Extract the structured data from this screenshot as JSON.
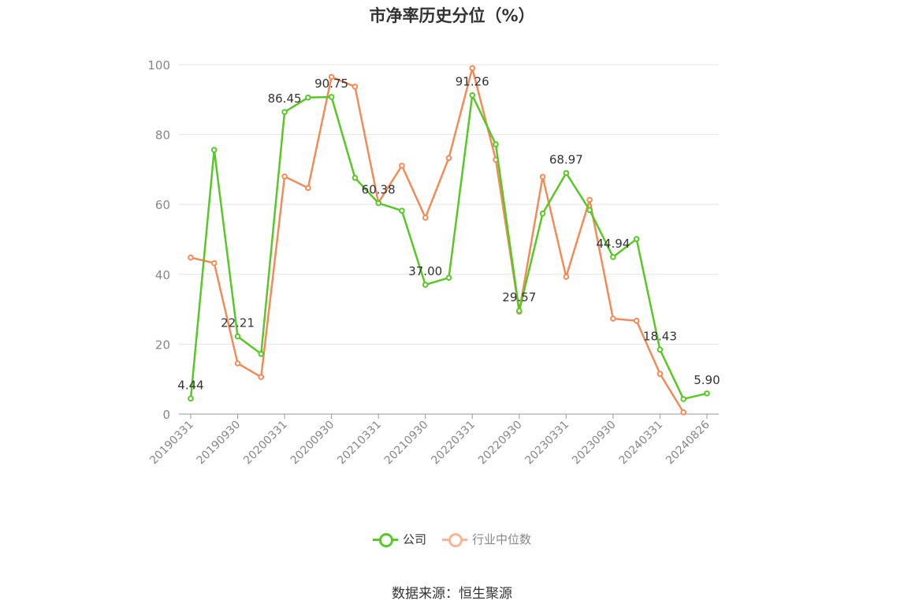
{
  "title": "市净率历史分位（%）",
  "source": "数据来源：恒生聚源",
  "colors": {
    "company": "#5ac726",
    "industry": "#f08c5a",
    "industry_legend": "#f9b596",
    "grid": "#e6e6e6",
    "axis": "#999999"
  },
  "chart_data": {
    "type": "line",
    "title": "市净率历史分位（%）",
    "ylim": [
      0,
      100
    ],
    "yticks": [
      0,
      20,
      40,
      60,
      80,
      100
    ],
    "x_tick_labels": [
      "20190331",
      "20190930",
      "20200331",
      "20200930",
      "20210331",
      "20210930",
      "20220331",
      "20220930",
      "20230331",
      "20230930",
      "20240331",
      "20240826"
    ],
    "x_tick_indices": [
      0,
      2,
      4,
      6,
      8,
      10,
      12,
      14,
      16,
      18,
      20,
      22
    ],
    "legend_position": "bottom",
    "grid": true,
    "series": [
      {
        "name": "公司",
        "values": [
          4.44,
          75.6,
          22.21,
          17.2,
          86.45,
          90.6,
          90.75,
          67.6,
          60.38,
          58.2,
          37.0,
          39.0,
          91.26,
          77.2,
          29.57,
          57.4,
          68.97,
          58.4,
          44.94,
          50.1,
          18.43,
          4.3,
          5.9
        ],
        "labels": {
          "0": "4.44",
          "2": "22.21",
          "4": "86.45",
          "6": "90.75",
          "8": "60.38",
          "10": "37.00",
          "12": "91.26",
          "14": "29.57",
          "16": "68.97",
          "18": "44.94",
          "20": "18.43",
          "22": "5.90"
        }
      },
      {
        "name": "行业中位数",
        "values": [
          44.8,
          43.2,
          14.5,
          10.6,
          68.0,
          64.7,
          96.5,
          93.7,
          60.5,
          71.1,
          56.2,
          73.3,
          99.0,
          72.8,
          29.3,
          67.9,
          39.3,
          61.3,
          27.3,
          26.7,
          11.5,
          0.5
        ]
      }
    ]
  }
}
